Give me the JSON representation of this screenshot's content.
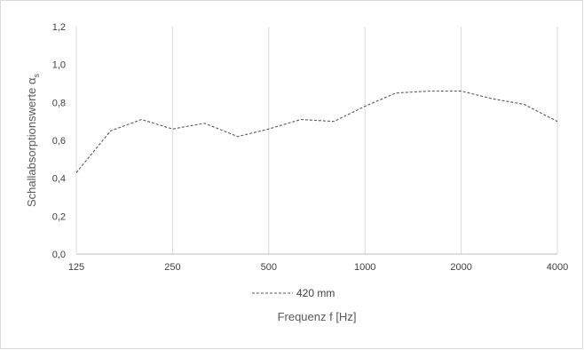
{
  "chart_data": {
    "type": "line",
    "xlabel": "Frequenz f [Hz]",
    "ylabel": "Schallabsorptionswerte α",
    "ylabel_subscript": "s",
    "x_tick_labels": [
      "125",
      "250",
      "500",
      "1000",
      "2000",
      "4000"
    ],
    "y_tick_labels": [
      "0,0",
      "0,2",
      "0,4",
      "0,6",
      "0,8",
      "1,0",
      "1,2"
    ],
    "ylim": [
      0,
      1.2
    ],
    "x_scale": "log",
    "xlim": [
      125,
      4000
    ],
    "grid": "vertical",
    "legend_position": "bottom",
    "series": [
      {
        "name": "420 mm",
        "style": "dashed",
        "color": "#595959",
        "x": [
          125,
          160,
          200,
          250,
          315,
          400,
          500,
          630,
          800,
          1000,
          1250,
          1600,
          2000,
          2500,
          3150,
          4000
        ],
        "values": [
          0.43,
          0.65,
          0.71,
          0.66,
          0.69,
          0.62,
          0.66,
          0.71,
          0.7,
          0.78,
          0.85,
          0.86,
          0.86,
          0.82,
          0.79,
          0.7
        ]
      }
    ]
  }
}
